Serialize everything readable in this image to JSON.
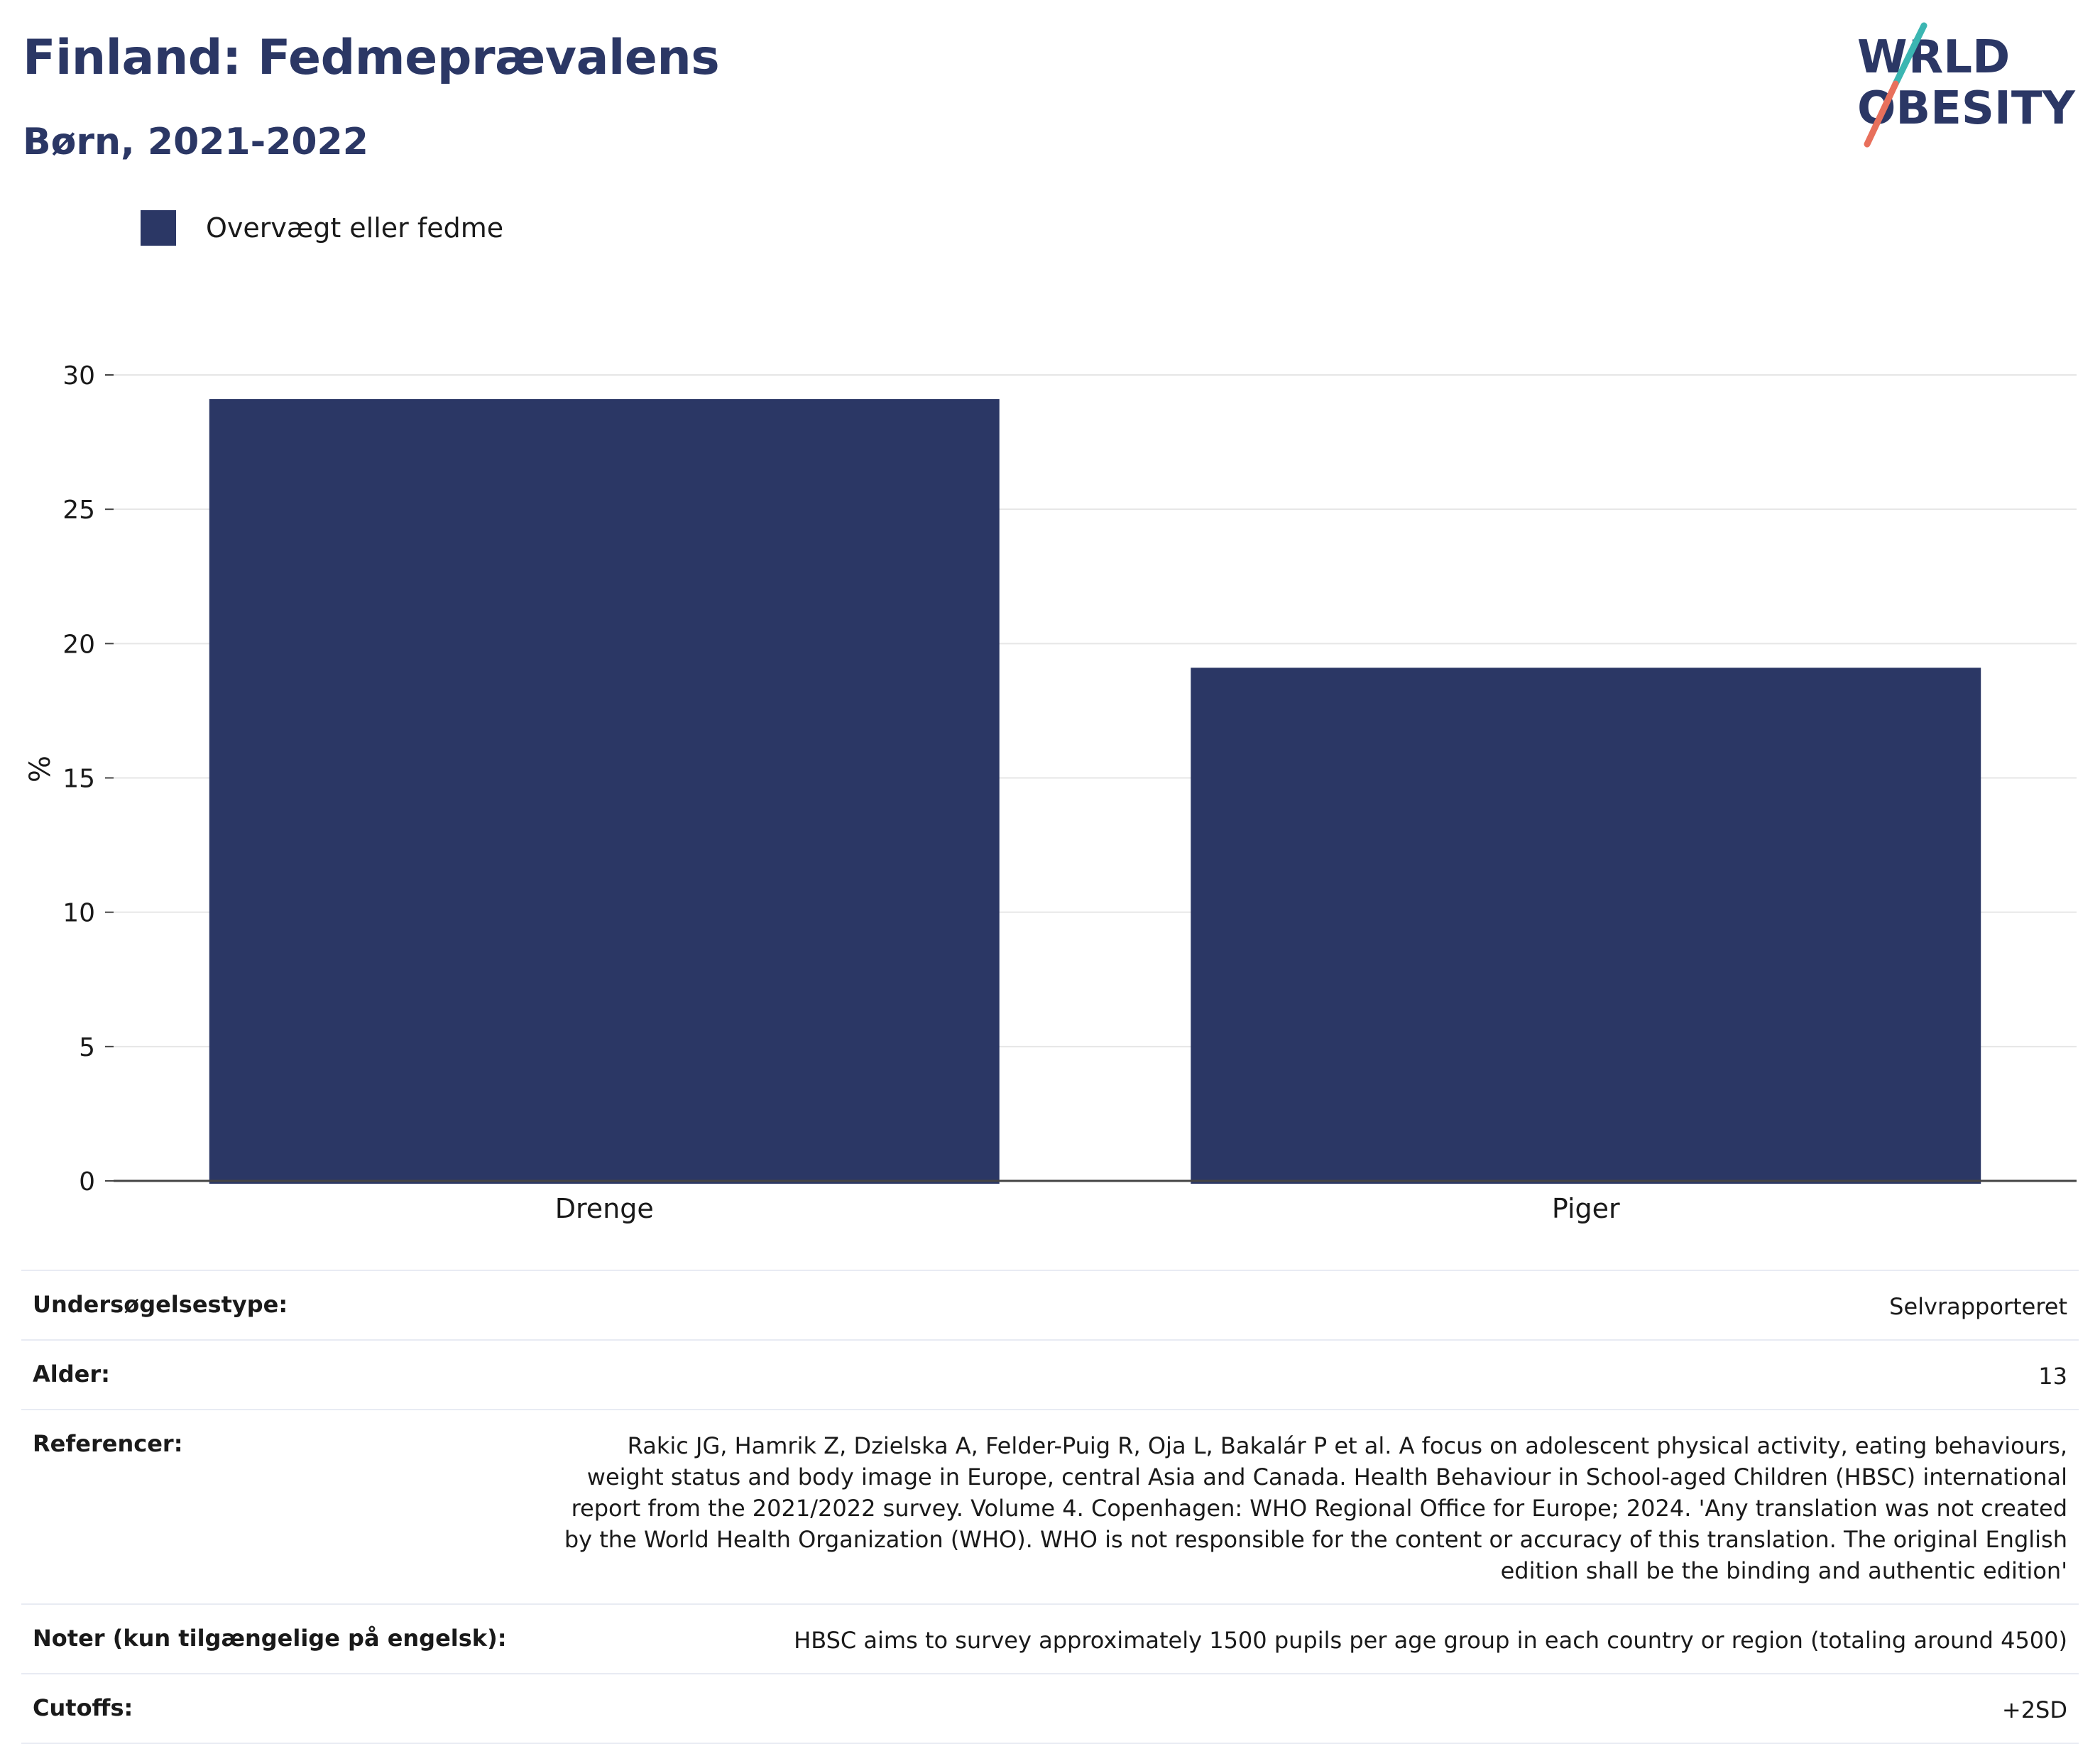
{
  "header": {
    "title": "Finland: Fedmeprævalens",
    "subtitle": "Børn, 2021-2022",
    "logo_text": "WORLD OBESITY"
  },
  "colors": {
    "bar": "#2b3765",
    "title": "#2b3765",
    "grid": "#e6e6e6",
    "logo_teal": "#3bb6b2",
    "logo_coral": "#e8705c"
  },
  "chart_data": {
    "type": "bar",
    "categories": [
      "Drenge",
      "Piger"
    ],
    "series": [
      {
        "name": "Overvægt eller fedme",
        "values": [
          29.1,
          19.1
        ]
      }
    ],
    "ylabel": "%",
    "xlabel": "",
    "ylim": [
      0,
      30
    ],
    "yticks": [
      0,
      5,
      10,
      15,
      20,
      25,
      30
    ],
    "grid": true,
    "legend_position": "top-left"
  },
  "info_table": [
    {
      "key": "Undersøgelsestype:",
      "value": "Selvrapporteret"
    },
    {
      "key": "Alder:",
      "value": "13"
    },
    {
      "key": "Referencer:",
      "value": "Rakic JG, Hamrik Z, Dzielska A, Felder-Puig R, Oja L, Bakalár P et al. A focus on adolescent physical activity, eating behaviours, weight status and body image in Europe, central Asia and Canada. Health Behaviour in School-aged Children (HBSC) international report from the 2021/2022 survey. Volume 4. Copenhagen: WHO Regional Office for Europe; 2024. 'Any translation was not created by the World Health Organization (WHO). WHO is not responsible for the content or accuracy of this translation. The original English edition shall be the binding and authentic edition'"
    },
    {
      "key": "Noter (kun tilgængelige på engelsk):",
      "value": "HBSC aims to survey approximately 1500 pupils per age group in each country or region (totaling around 4500)"
    },
    {
      "key": "Cutoffs:",
      "value": "+2SD"
    }
  ]
}
